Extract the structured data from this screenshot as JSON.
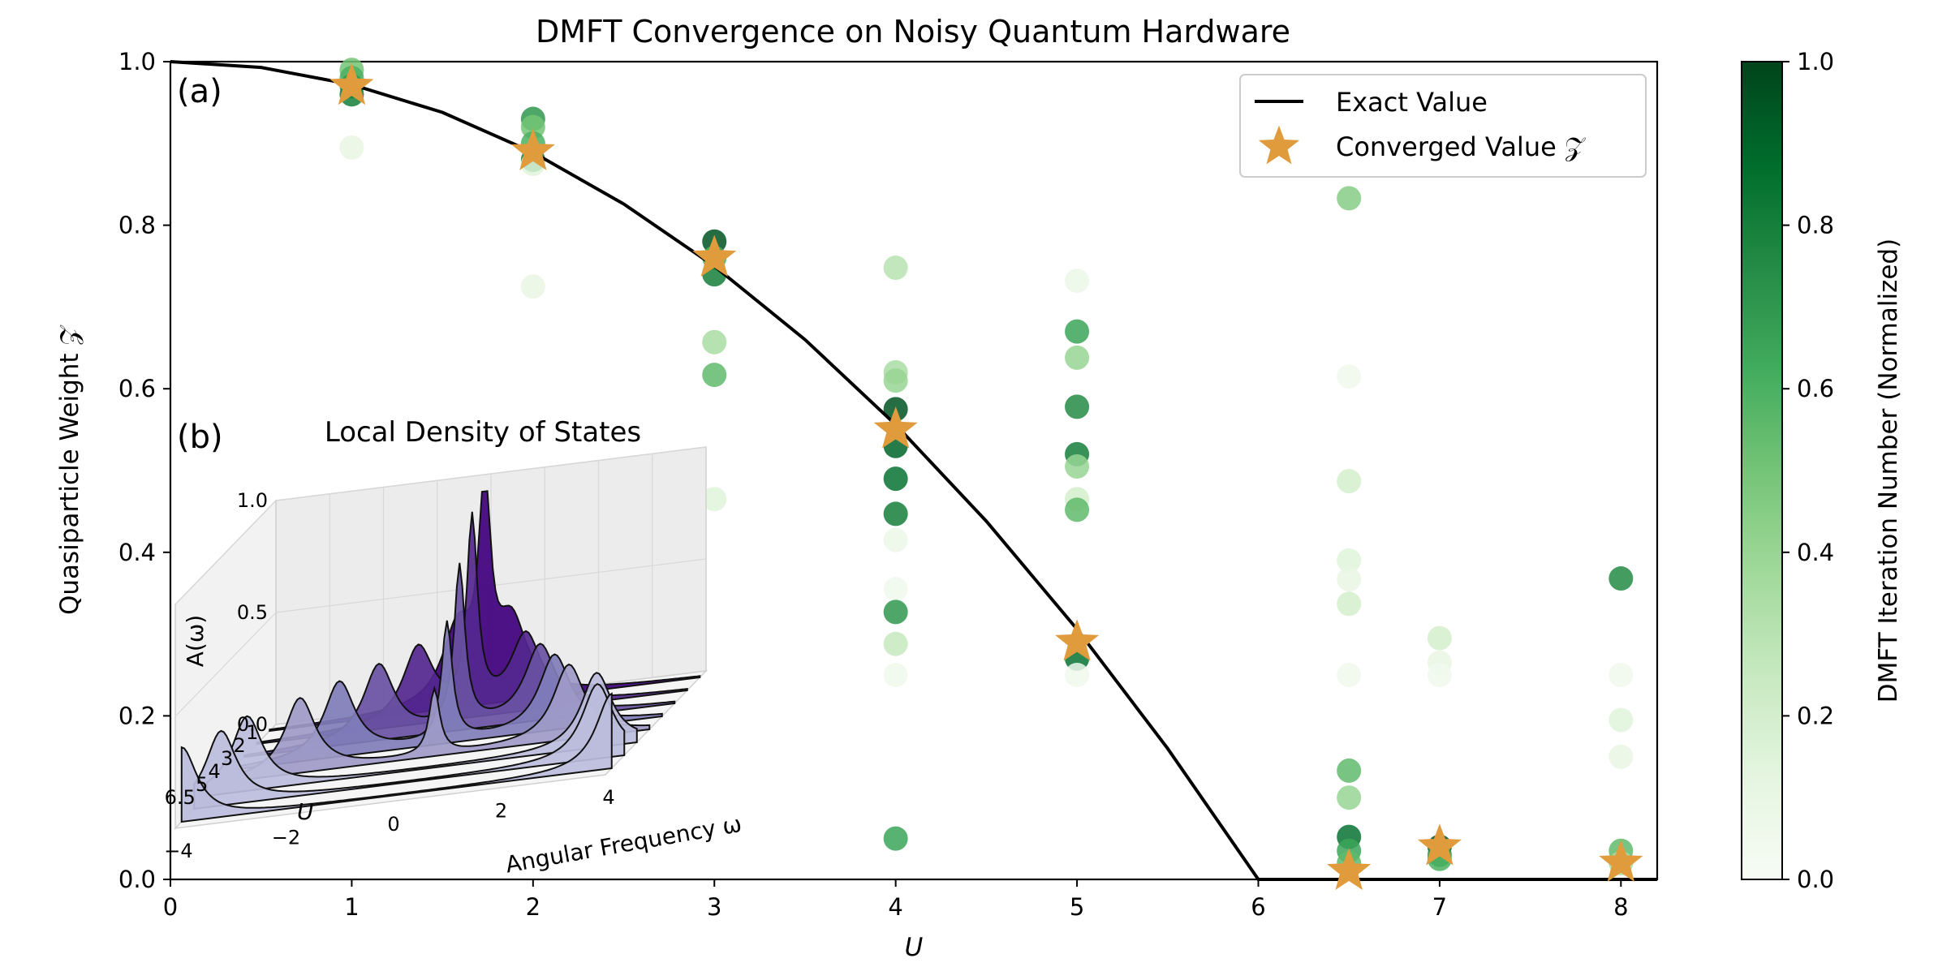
{
  "chart_data": {
    "type": "scatter",
    "title": "DMFT Convergence on Noisy Quantum Hardware",
    "xlabel": "U",
    "ylabel": "Quasiparticle Weight 𝒵",
    "xlim": [
      0,
      8.2
    ],
    "ylim": [
      0,
      1.0
    ],
    "x_ticks": [
      "0",
      "1",
      "2",
      "3",
      "4",
      "5",
      "6",
      "7",
      "8"
    ],
    "y_ticks": [
      "0.0",
      "0.2",
      "0.4",
      "0.6",
      "0.8",
      "1.0"
    ],
    "panel_a": "(a)",
    "panel_b": "(b)",
    "legend_placement": "top-right",
    "legend": {
      "exact": "Exact Value",
      "converged": "Converged Value 𝒵"
    },
    "exact_value": {
      "name": "Exact Value",
      "x": [
        0,
        0.5,
        1,
        1.5,
        2,
        2.5,
        3,
        3.5,
        4,
        4.5,
        5,
        5.5,
        6,
        6.5,
        7,
        7.5,
        8,
        8.2
      ],
      "y": [
        1.0,
        0.993,
        0.972,
        0.938,
        0.889,
        0.826,
        0.75,
        0.66,
        0.556,
        0.438,
        0.306,
        0.16,
        0.0,
        0.0,
        0.0,
        0.0,
        0.0,
        0.0
      ]
    },
    "converged": {
      "name": "Converged Value 𝒵",
      "x": [
        1,
        2,
        3,
        4,
        5,
        6.5,
        7,
        8
      ],
      "y": [
        0.97,
        0.89,
        0.76,
        0.55,
        0.29,
        0.01,
        0.04,
        0.02
      ]
    },
    "iterations": [
      {
        "x": 1,
        "y": 0.99,
        "c": 0.5
      },
      {
        "x": 1,
        "y": 0.98,
        "c": 0.6
      },
      {
        "x": 1,
        "y": 0.97,
        "c": 0.7
      },
      {
        "x": 1,
        "y": 0.96,
        "c": 0.8
      },
      {
        "x": 1,
        "y": 0.895,
        "c": 0.1
      },
      {
        "x": 2,
        "y": 0.93,
        "c": 0.7
      },
      {
        "x": 2,
        "y": 0.92,
        "c": 0.5
      },
      {
        "x": 2,
        "y": 0.9,
        "c": 0.6
      },
      {
        "x": 2,
        "y": 0.88,
        "c": 0.8
      },
      {
        "x": 2,
        "y": 0.875,
        "c": 0.15
      },
      {
        "x": 2,
        "y": 0.725,
        "c": 0.1
      },
      {
        "x": 3,
        "y": 0.78,
        "c": 0.95
      },
      {
        "x": 3,
        "y": 0.76,
        "c": 0.6
      },
      {
        "x": 3,
        "y": 0.74,
        "c": 0.8
      },
      {
        "x": 3,
        "y": 0.657,
        "c": 0.35
      },
      {
        "x": 3,
        "y": 0.617,
        "c": 0.55
      },
      {
        "x": 3,
        "y": 0.465,
        "c": 0.15
      },
      {
        "x": 4,
        "y": 0.748,
        "c": 0.3
      },
      {
        "x": 4,
        "y": 0.62,
        "c": 0.35
      },
      {
        "x": 4,
        "y": 0.61,
        "c": 0.4
      },
      {
        "x": 4,
        "y": 0.575,
        "c": 0.95
      },
      {
        "x": 4,
        "y": 0.53,
        "c": 0.9
      },
      {
        "x": 4,
        "y": 0.49,
        "c": 0.85
      },
      {
        "x": 4,
        "y": 0.447,
        "c": 0.8
      },
      {
        "x": 4,
        "y": 0.415,
        "c": 0.08
      },
      {
        "x": 4,
        "y": 0.355,
        "c": 0.05
      },
      {
        "x": 4,
        "y": 0.327,
        "c": 0.7
      },
      {
        "x": 4,
        "y": 0.288,
        "c": 0.25
      },
      {
        "x": 4,
        "y": 0.25,
        "c": 0.05
      },
      {
        "x": 4,
        "y": 0.05,
        "c": 0.65
      },
      {
        "x": 5,
        "y": 0.732,
        "c": 0.08
      },
      {
        "x": 5,
        "y": 0.67,
        "c": 0.65
      },
      {
        "x": 5,
        "y": 0.638,
        "c": 0.4
      },
      {
        "x": 5,
        "y": 0.578,
        "c": 0.75
      },
      {
        "x": 5,
        "y": 0.52,
        "c": 0.8
      },
      {
        "x": 5,
        "y": 0.505,
        "c": 0.4
      },
      {
        "x": 5,
        "y": 0.465,
        "c": 0.2
      },
      {
        "x": 5,
        "y": 0.452,
        "c": 0.55
      },
      {
        "x": 5,
        "y": 0.27,
        "c": 0.85
      },
      {
        "x": 5,
        "y": 0.25,
        "c": 0.05
      },
      {
        "x": 6.5,
        "y": 0.833,
        "c": 0.45
      },
      {
        "x": 6.5,
        "y": 0.615,
        "c": 0.05
      },
      {
        "x": 6.5,
        "y": 0.487,
        "c": 0.2
      },
      {
        "x": 6.5,
        "y": 0.39,
        "c": 0.15
      },
      {
        "x": 6.5,
        "y": 0.367,
        "c": 0.1
      },
      {
        "x": 6.5,
        "y": 0.337,
        "c": 0.2
      },
      {
        "x": 6.5,
        "y": 0.25,
        "c": 0.05
      },
      {
        "x": 6.5,
        "y": 0.133,
        "c": 0.55
      },
      {
        "x": 6.5,
        "y": 0.1,
        "c": 0.4
      },
      {
        "x": 6.5,
        "y": 0.052,
        "c": 0.85
      },
      {
        "x": 6.5,
        "y": 0.035,
        "c": 0.65
      },
      {
        "x": 6.5,
        "y": 0.02,
        "c": 0.55
      },
      {
        "x": 7,
        "y": 0.295,
        "c": 0.2
      },
      {
        "x": 7,
        "y": 0.265,
        "c": 0.1
      },
      {
        "x": 7,
        "y": 0.25,
        "c": 0.05
      },
      {
        "x": 7,
        "y": 0.04,
        "c": 0.95
      },
      {
        "x": 7,
        "y": 0.03,
        "c": 0.7
      },
      {
        "x": 7,
        "y": 0.025,
        "c": 0.6
      },
      {
        "x": 8,
        "y": 0.368,
        "c": 0.75
      },
      {
        "x": 8,
        "y": 0.25,
        "c": 0.05
      },
      {
        "x": 8,
        "y": 0.195,
        "c": 0.15
      },
      {
        "x": 8,
        "y": 0.15,
        "c": 0.1
      },
      {
        "x": 8,
        "y": 0.035,
        "c": 0.55
      },
      {
        "x": 8,
        "y": 0.02,
        "c": 0.35
      }
    ],
    "colorbar": {
      "label": "DMFT Iteration Number (Normalized)",
      "ticks": [
        "0.0",
        "0.2",
        "0.4",
        "0.6",
        "0.8",
        "1.0"
      ],
      "low_color": "#f7fcf5",
      "high_color": "#00441b",
      "colormap": "Greens"
    },
    "converged_color": "#e09b3d",
    "inset": {
      "title": "Local Density of States",
      "zlabel": "A(ω)",
      "xlabel": "Angular Frequency ω",
      "ylabel": "U",
      "z_ticks": [
        "0.0",
        "0.5",
        "1.0"
      ],
      "u_ticks": [
        "1",
        "2",
        "3",
        "4",
        "5",
        "6.5"
      ],
      "w_ticks": [
        "−4",
        "−2",
        "0",
        "2",
        "4"
      ],
      "u_values": [
        1,
        2,
        3,
        4,
        5,
        6.5,
        7,
        8
      ],
      "colors": [
        "#3f007d",
        "#54278f",
        "#6a51a3",
        "#807dba",
        "#9e9ac8",
        "#bcbddc"
      ]
    }
  }
}
